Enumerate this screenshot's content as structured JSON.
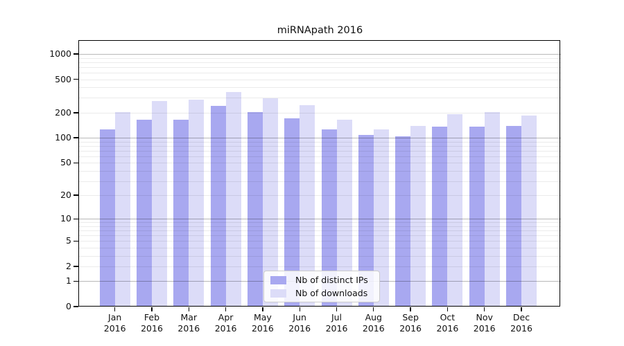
{
  "title": "miRNApath 2016",
  "colors": {
    "ips_bar": "#a8a8f0",
    "downloads_bar": "#dcdcf8",
    "grid_major": "rgba(0,0,0,0.28)",
    "grid_minor": "rgba(0,0,0,0.08)",
    "axis_frame": "#000000",
    "background": "#ffffff"
  },
  "legend": {
    "entries": [
      {
        "label": "Nb of distinct IPs"
      },
      {
        "label": "Nb of downloads"
      }
    ]
  },
  "chart_data": {
    "type": "bar",
    "title": "miRNApath 2016",
    "categories": [
      "Jan 2016",
      "Feb 2016",
      "Mar 2016",
      "Apr 2016",
      "May 2016",
      "Jun 2016",
      "Jul 2016",
      "Aug 2016",
      "Sep 2016",
      "Oct 2016",
      "Nov 2016",
      "Dec 2016"
    ],
    "month_labels": [
      "Jan",
      "Feb",
      "Mar",
      "Apr",
      "May",
      "Jun",
      "Jul",
      "Aug",
      "Sep",
      "Oct",
      "Nov",
      "Dec"
    ],
    "year_label": "2016",
    "series": [
      {
        "name": "Nb of distinct IPs",
        "values": [
          127,
          165,
          166,
          242,
          204,
          170,
          127,
          108,
          104,
          137,
          137,
          138
        ]
      },
      {
        "name": "Nb of downloads",
        "values": [
          205,
          276,
          288,
          352,
          298,
          246,
          164,
          126,
          138,
          192,
          202,
          186
        ]
      }
    ],
    "xlabel": "",
    "ylabel": "",
    "yscale": "log1p",
    "yticks": [
      0,
      1,
      2,
      5,
      10,
      20,
      50,
      100,
      200,
      500,
      1000
    ],
    "ylim": [
      0,
      1430
    ],
    "grid": "horizontal, log minor lines faint, decade lines darker, drawn over bars",
    "legend_position": "inside lower center"
  }
}
